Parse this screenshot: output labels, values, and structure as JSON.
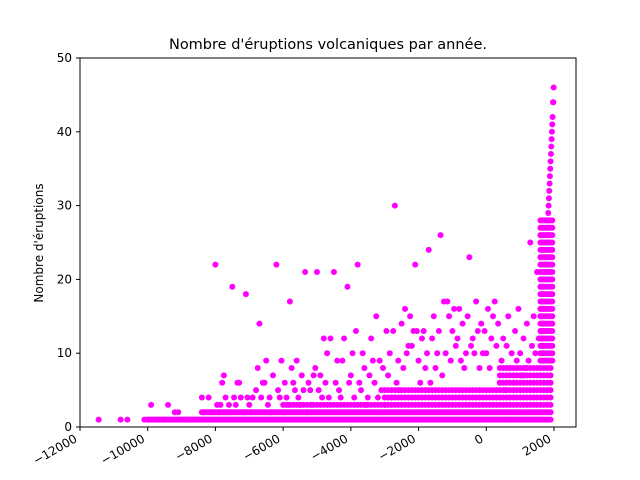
{
  "chart_data": {
    "type": "scatter",
    "title": "Nombre d'éruptions volcaniques par année.",
    "xlabel": "",
    "ylabel": "Nombre d'éruptions",
    "xlim": [
      -12000,
      2650
    ],
    "ylim": [
      0,
      50
    ],
    "x_ticks": [
      -12000,
      -10000,
      -8000,
      -6000,
      -4000,
      -2000,
      0,
      2000
    ],
    "y_ticks": [
      0,
      10,
      20,
      30,
      40,
      50
    ],
    "x_tick_labels": [
      "−12000",
      "−10000",
      "−8000",
      "−6000",
      "−4000",
      "−2000",
      "0",
      "2000"
    ],
    "y_tick_labels": [
      "0",
      "10",
      "20",
      "30",
      "40",
      "50"
    ],
    "grid": false,
    "marker_color": "#ff00ff",
    "series": [
      {
        "name": "",
        "points": [
          [
            -11450,
            1
          ],
          [
            -10800,
            1
          ],
          [
            -10600,
            1
          ],
          [
            -10100,
            1
          ],
          [
            -10000,
            1
          ],
          [
            -9900,
            3
          ],
          [
            -9700,
            1
          ],
          [
            -9500,
            1
          ],
          [
            -9400,
            3
          ],
          [
            -9200,
            2
          ],
          [
            -9100,
            2
          ],
          [
            -9000,
            1
          ],
          [
            -8900,
            1
          ],
          [
            -8800,
            1
          ],
          [
            -8700,
            1
          ],
          [
            -8600,
            1
          ],
          [
            -8500,
            1
          ],
          [
            -8400,
            4
          ],
          [
            -8350,
            2
          ],
          [
            -8200,
            4
          ],
          [
            -8100,
            2
          ],
          [
            -8000,
            22
          ],
          [
            -7950,
            3
          ],
          [
            -7900,
            2
          ],
          [
            -7850,
            3
          ],
          [
            -7800,
            6
          ],
          [
            -7750,
            7
          ],
          [
            -7700,
            4
          ],
          [
            -7650,
            2
          ],
          [
            -7600,
            3
          ],
          [
            -7550,
            2
          ],
          [
            -7500,
            19
          ],
          [
            -7450,
            4
          ],
          [
            -7400,
            3
          ],
          [
            -7350,
            6
          ],
          [
            -7300,
            6
          ],
          [
            -7250,
            4
          ],
          [
            -7200,
            2
          ],
          [
            -7150,
            2
          ],
          [
            -7100,
            18
          ],
          [
            -7050,
            4
          ],
          [
            -7000,
            3
          ],
          [
            -6950,
            2
          ],
          [
            -6900,
            4
          ],
          [
            -6800,
            5
          ],
          [
            -6750,
            8
          ],
          [
            -6700,
            14
          ],
          [
            -6650,
            4
          ],
          [
            -6600,
            6
          ],
          [
            -6550,
            6
          ],
          [
            -6500,
            9
          ],
          [
            -6450,
            3
          ],
          [
            -6400,
            4
          ],
          [
            -6350,
            2
          ],
          [
            -6300,
            7
          ],
          [
            -6200,
            22
          ],
          [
            -6150,
            5
          ],
          [
            -6100,
            4
          ],
          [
            -6050,
            9
          ],
          [
            -6000,
            2
          ],
          [
            -5950,
            6
          ],
          [
            -5900,
            4
          ],
          [
            -5850,
            3
          ],
          [
            -5800,
            17
          ],
          [
            -5750,
            8
          ],
          [
            -5700,
            6
          ],
          [
            -5650,
            5
          ],
          [
            -5600,
            9
          ],
          [
            -5550,
            4
          ],
          [
            -5500,
            3
          ],
          [
            -5450,
            7
          ],
          [
            -5400,
            5
          ],
          [
            -5350,
            21
          ],
          [
            -5300,
            2
          ],
          [
            -5250,
            6
          ],
          [
            -5200,
            5
          ],
          [
            -5150,
            3
          ],
          [
            -5100,
            7
          ],
          [
            -5050,
            8
          ],
          [
            -5000,
            21
          ],
          [
            -4950,
            5
          ],
          [
            -4900,
            7
          ],
          [
            -4850,
            4
          ],
          [
            -4800,
            12
          ],
          [
            -4750,
            6
          ],
          [
            -4700,
            10
          ],
          [
            -4650,
            4
          ],
          [
            -4600,
            12
          ],
          [
            -4500,
            21
          ],
          [
            -4450,
            6
          ],
          [
            -4400,
            9
          ],
          [
            -4350,
            5
          ],
          [
            -4300,
            4
          ],
          [
            -4250,
            9
          ],
          [
            -4200,
            12
          ],
          [
            -4100,
            19
          ],
          [
            -4050,
            6
          ],
          [
            -4000,
            7
          ],
          [
            -3950,
            10
          ],
          [
            -3900,
            4
          ],
          [
            -3850,
            13
          ],
          [
            -3800,
            22
          ],
          [
            -3750,
            6
          ],
          [
            -3700,
            5
          ],
          [
            -3650,
            10
          ],
          [
            -3600,
            8
          ],
          [
            -3550,
            3
          ],
          [
            -3500,
            4
          ],
          [
            -3450,
            7
          ],
          [
            -3400,
            12
          ],
          [
            -3350,
            9
          ],
          [
            -3300,
            6
          ],
          [
            -3250,
            15
          ],
          [
            -3200,
            4
          ],
          [
            -3150,
            9
          ],
          [
            -3100,
            5
          ],
          [
            -3050,
            8
          ],
          [
            -3000,
            3
          ],
          [
            -2950,
            13
          ],
          [
            -2900,
            7
          ],
          [
            -2850,
            10
          ],
          [
            -2800,
            4
          ],
          [
            -2750,
            13
          ],
          [
            -2700,
            30
          ],
          [
            -2650,
            6
          ],
          [
            -2600,
            9
          ],
          [
            -2550,
            5
          ],
          [
            -2500,
            14
          ],
          [
            -2450,
            8
          ],
          [
            -2400,
            16
          ],
          [
            -2350,
            10
          ],
          [
            -2300,
            11
          ],
          [
            -2250,
            15
          ],
          [
            -2200,
            11
          ],
          [
            -2150,
            13
          ],
          [
            -2100,
            22
          ],
          [
            -2050,
            13
          ],
          [
            -2000,
            9
          ],
          [
            -1950,
            6
          ],
          [
            -1900,
            12
          ],
          [
            -1850,
            13
          ],
          [
            -1800,
            8
          ],
          [
            -1750,
            10
          ],
          [
            -1700,
            24
          ],
          [
            -1650,
            6
          ],
          [
            -1600,
            12
          ],
          [
            -1550,
            15
          ],
          [
            -1500,
            8
          ],
          [
            -1450,
            10
          ],
          [
            -1400,
            13
          ],
          [
            -1350,
            26
          ],
          [
            -1300,
            7
          ],
          [
            -1250,
            17
          ],
          [
            -1200,
            10
          ],
          [
            -1150,
            17
          ],
          [
            -1100,
            15
          ],
          [
            -1050,
            9
          ],
          [
            -1000,
            13
          ],
          [
            -950,
            16
          ],
          [
            -900,
            11
          ],
          [
            -850,
            12
          ],
          [
            -800,
            16
          ],
          [
            -750,
            9
          ],
          [
            -700,
            14
          ],
          [
            -650,
            8
          ],
          [
            -600,
            10
          ],
          [
            -550,
            15
          ],
          [
            -500,
            23
          ],
          [
            -450,
            11
          ],
          [
            -400,
            12
          ],
          [
            -350,
            10
          ],
          [
            -300,
            17
          ],
          [
            -250,
            13
          ],
          [
            -200,
            8
          ],
          [
            -150,
            14
          ],
          [
            -100,
            10
          ],
          [
            -50,
            13
          ],
          [
            0,
            10
          ],
          [
            50,
            16
          ],
          [
            100,
            8
          ],
          [
            150,
            12
          ],
          [
            200,
            15
          ],
          [
            250,
            17
          ],
          [
            300,
            11
          ],
          [
            350,
            14
          ],
          [
            400,
            6
          ],
          [
            450,
            9
          ],
          [
            500,
            12
          ],
          [
            550,
            5
          ],
          [
            600,
            11
          ],
          [
            650,
            15
          ],
          [
            700,
            8
          ],
          [
            750,
            10
          ],
          [
            800,
            6
          ],
          [
            850,
            13
          ],
          [
            900,
            9
          ],
          [
            950,
            16
          ],
          [
            1000,
            10
          ],
          [
            1050,
            7
          ],
          [
            1100,
            12
          ],
          [
            1150,
            8
          ],
          [
            1200,
            14
          ],
          [
            1250,
            9
          ],
          [
            1300,
            25
          ],
          [
            1350,
            11
          ],
          [
            1400,
            15
          ],
          [
            1450,
            10
          ],
          [
            1500,
            21
          ],
          [
            1550,
            12
          ],
          [
            1600,
            15
          ],
          [
            1620,
            13
          ],
          [
            1640,
            17
          ],
          [
            1660,
            19
          ],
          [
            1680,
            14
          ],
          [
            1700,
            16
          ],
          [
            1720,
            18
          ],
          [
            1740,
            20
          ],
          [
            1750,
            21
          ],
          [
            1760,
            22
          ],
          [
            1770,
            23
          ],
          [
            1780,
            24
          ],
          [
            1790,
            25
          ],
          [
            1800,
            26
          ],
          [
            1810,
            27
          ],
          [
            1820,
            28
          ],
          [
            1830,
            29
          ],
          [
            1840,
            30
          ],
          [
            1850,
            31
          ],
          [
            1860,
            32
          ],
          [
            1870,
            33
          ],
          [
            1880,
            34
          ],
          [
            1890,
            35
          ],
          [
            1900,
            36
          ],
          [
            1910,
            37
          ],
          [
            1920,
            38
          ],
          [
            1930,
            39
          ],
          [
            1940,
            40
          ],
          [
            1950,
            41
          ],
          [
            1960,
            42
          ],
          [
            1970,
            44
          ],
          [
            1980,
            44
          ],
          [
            1990,
            46
          ]
        ]
      }
    ],
    "dense_bands": [
      {
        "x_start": -10000,
        "x_end": 1940,
        "step": 50,
        "y_values": [
          1
        ]
      },
      {
        "x_start": -8400,
        "x_end": 1940,
        "step": 50,
        "y_values": [
          2
        ]
      },
      {
        "x_start": -6000,
        "x_end": 1940,
        "step": 100,
        "y_values": [
          3
        ]
      },
      {
        "x_start": -3000,
        "x_end": 1940,
        "step": 100,
        "y_values": [
          4,
          5
        ]
      },
      {
        "x_start": 400,
        "x_end": 1940,
        "step": 100,
        "y_values": [
          6,
          7,
          8
        ]
      },
      {
        "x_start": 1600,
        "x_end": 1990,
        "step": 50,
        "y_values": [
          9,
          10,
          11,
          12,
          13,
          14,
          15,
          16,
          17,
          18,
          19,
          20,
          21,
          22,
          23,
          24,
          25,
          26,
          27,
          28
        ]
      }
    ]
  }
}
